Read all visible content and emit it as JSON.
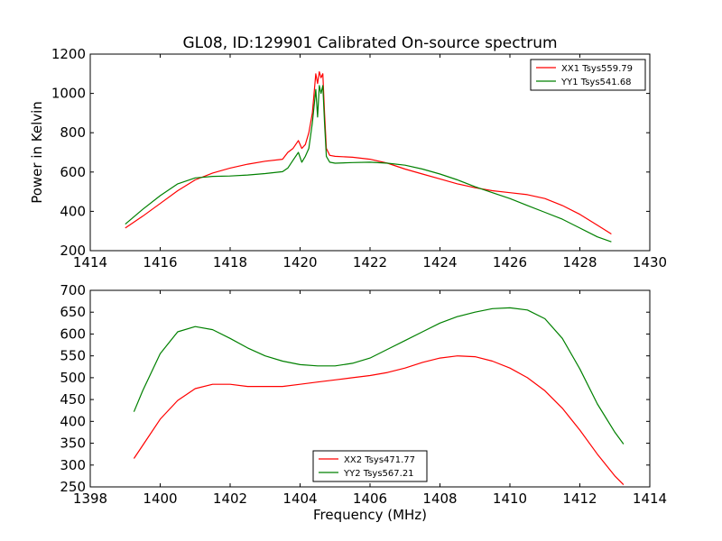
{
  "figure": {
    "title": "GL08, ID:129901 Calibrated On-source spectrum"
  },
  "chart_data": [
    {
      "type": "line",
      "title": "GL08, ID:129901 Calibrated On-source spectrum",
      "xlabel": "",
      "ylabel": "Power in Kelvin",
      "xlim": [
        1414,
        1430
      ],
      "ylim": [
        200,
        1200
      ],
      "xticks": [
        1414,
        1416,
        1418,
        1420,
        1422,
        1424,
        1426,
        1428,
        1430
      ],
      "yticks": [
        200,
        400,
        600,
        800,
        1000,
        1200
      ],
      "grid": false,
      "legend_position": "top-right",
      "series": [
        {
          "name": "XX1 Tsys559.79",
          "color": "#ff0000",
          "x": [
            1415.0,
            1415.5,
            1416.0,
            1416.5,
            1417.0,
            1417.5,
            1418.0,
            1418.5,
            1419.0,
            1419.5,
            1419.65,
            1419.8,
            1419.95,
            1420.05,
            1420.15,
            1420.25,
            1420.35,
            1420.45,
            1420.5,
            1420.55,
            1420.6,
            1420.65,
            1420.7,
            1420.75,
            1420.85,
            1421.0,
            1421.5,
            1422.0,
            1422.5,
            1423.0,
            1423.5,
            1424.0,
            1424.5,
            1425.0,
            1425.5,
            1426.0,
            1426.5,
            1427.0,
            1427.5,
            1428.0,
            1428.5,
            1428.9
          ],
          "y": [
            315,
            375,
            440,
            505,
            560,
            595,
            620,
            640,
            655,
            665,
            700,
            720,
            760,
            720,
            740,
            800,
            900,
            1100,
            1050,
            1110,
            1080,
            1100,
            900,
            720,
            685,
            680,
            675,
            665,
            645,
            615,
            590,
            565,
            540,
            520,
            505,
            495,
            485,
            465,
            430,
            385,
            330,
            285
          ]
        },
        {
          "name": "YY1 Tsys541.68",
          "color": "#008000",
          "x": [
            1415.0,
            1415.5,
            1416.0,
            1416.5,
            1417.0,
            1417.5,
            1418.0,
            1418.5,
            1419.0,
            1419.5,
            1419.65,
            1419.8,
            1419.95,
            1420.05,
            1420.15,
            1420.25,
            1420.35,
            1420.45,
            1420.5,
            1420.55,
            1420.6,
            1420.65,
            1420.7,
            1420.75,
            1420.85,
            1421.0,
            1421.5,
            1422.0,
            1422.5,
            1423.0,
            1423.5,
            1424.0,
            1424.5,
            1425.0,
            1425.5,
            1426.0,
            1426.5,
            1427.0,
            1427.5,
            1428.0,
            1428.5,
            1428.9
          ],
          "y": [
            335,
            410,
            480,
            540,
            570,
            578,
            580,
            585,
            592,
            602,
            620,
            660,
            700,
            650,
            680,
            720,
            850,
            1020,
            880,
            1040,
            1000,
            1040,
            850,
            680,
            650,
            645,
            648,
            650,
            645,
            635,
            615,
            590,
            560,
            525,
            495,
            465,
            430,
            395,
            360,
            315,
            270,
            245
          ]
        }
      ]
    },
    {
      "type": "line",
      "title": "",
      "xlabel": "Frequency (MHz)",
      "ylabel": "",
      "xlim": [
        1398,
        1414
      ],
      "ylim": [
        250,
        700
      ],
      "xticks": [
        1398,
        1400,
        1402,
        1404,
        1406,
        1408,
        1410,
        1412,
        1414
      ],
      "yticks": [
        250,
        300,
        350,
        400,
        450,
        500,
        550,
        600,
        650,
        700
      ],
      "grid": false,
      "legend_position": "bottom-center",
      "series": [
        {
          "name": "XX2 Tsys471.77",
          "color": "#ff0000",
          "x": [
            1399.25,
            1399.5,
            1400.0,
            1400.5,
            1401.0,
            1401.5,
            1402.0,
            1402.5,
            1403.0,
            1403.5,
            1404.0,
            1404.5,
            1405.0,
            1405.5,
            1406.0,
            1406.5,
            1407.0,
            1407.5,
            1408.0,
            1408.5,
            1409.0,
            1409.5,
            1410.0,
            1410.5,
            1411.0,
            1411.5,
            1412.0,
            1412.5,
            1413.0,
            1413.25
          ],
          "y": [
            315,
            345,
            405,
            448,
            475,
            485,
            485,
            480,
            480,
            480,
            485,
            490,
            495,
            500,
            505,
            512,
            522,
            535,
            545,
            550,
            548,
            538,
            522,
            500,
            470,
            430,
            380,
            325,
            275,
            255
          ]
        },
        {
          "name": "YY2 Tsys567.21",
          "color": "#008000",
          "x": [
            1399.25,
            1399.5,
            1400.0,
            1400.5,
            1401.0,
            1401.5,
            1402.0,
            1402.5,
            1403.0,
            1403.5,
            1404.0,
            1404.5,
            1405.0,
            1405.5,
            1406.0,
            1406.5,
            1407.0,
            1407.5,
            1408.0,
            1408.5,
            1409.0,
            1409.5,
            1410.0,
            1410.5,
            1411.0,
            1411.5,
            1412.0,
            1412.5,
            1413.0,
            1413.25
          ],
          "y": [
            422,
            470,
            555,
            605,
            617,
            610,
            590,
            568,
            550,
            538,
            530,
            527,
            527,
            533,
            545,
            565,
            585,
            605,
            625,
            640,
            650,
            658,
            660,
            655,
            635,
            590,
            520,
            440,
            375,
            348
          ]
        }
      ]
    }
  ]
}
